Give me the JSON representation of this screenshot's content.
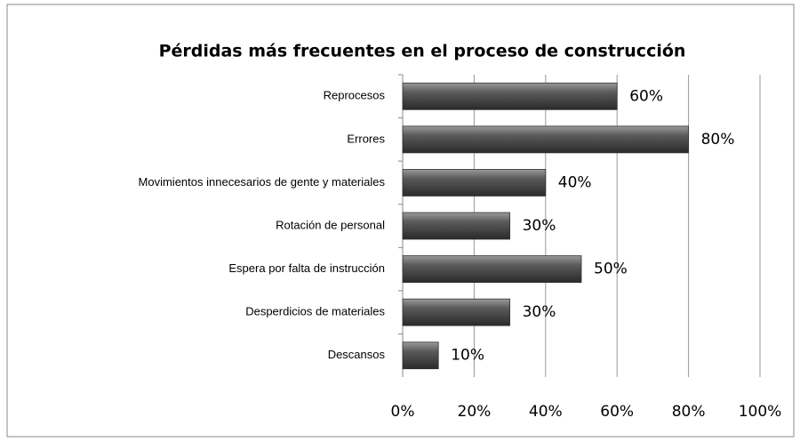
{
  "chart_data": {
    "type": "bar",
    "orientation": "horizontal",
    "title": "Pérdidas más frecuentes en el proceso de construcción",
    "categories": [
      "Reprocesos",
      "Errores",
      "Movimientos innecesarios de gente y materiales",
      "Rotación de personal",
      "Espera por falta de instrucción",
      "Desperdicios de materiales",
      "Descansos"
    ],
    "values": [
      60,
      80,
      40,
      30,
      50,
      30,
      10
    ],
    "value_labels": [
      "60%",
      "80%",
      "40%",
      "30%",
      "50%",
      "30%",
      "10%"
    ],
    "color": "#555555",
    "xlim": [
      0,
      100
    ],
    "xticks": [
      {
        "value": 0,
        "label": "0%"
      },
      {
        "value": 20,
        "label": "20%"
      },
      {
        "value": 40,
        "label": "40%"
      },
      {
        "value": 60,
        "label": "60%"
      },
      {
        "value": 80,
        "label": "80%"
      },
      {
        "value": 100,
        "label": "100%"
      }
    ],
    "grid": true
  }
}
